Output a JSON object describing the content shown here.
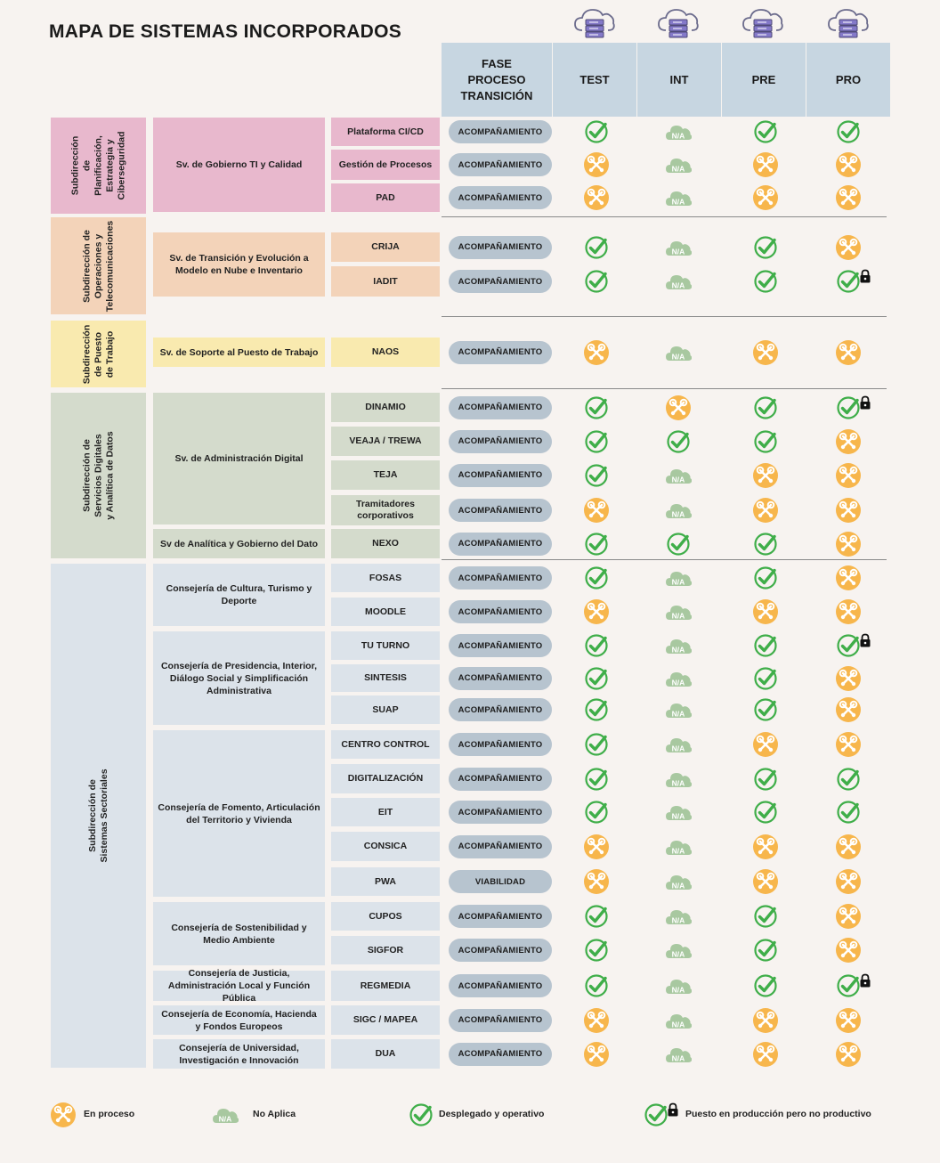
{
  "title": "MAPA DE SISTEMAS INCORPORADOS",
  "headers": {
    "phase": [
      "FASE",
      "PROCESO",
      "TRANSICIÓN"
    ],
    "environments": [
      "TEST",
      "INT",
      "PRE",
      "PRO"
    ]
  },
  "na_label": "N/A",
  "colors": {
    "planning": "#e8b8cd",
    "operations": "#f3d3b9",
    "workplace": "#f9eaaf",
    "digital": "#d4dbcc",
    "sectorial": "#dce3ea",
    "header": "#c7d6e1",
    "pill": "#b7c4cf",
    "check": "#3fae49",
    "progress": "#f7b64c",
    "na": "#a8c8a0"
  },
  "subdirections": [
    {
      "lines": [
        "Subdirección",
        "de",
        "Planificación,",
        "Estrategia y",
        "Ciberseguridad"
      ]
    },
    {
      "lines": [
        "Subdirección de",
        "Operaciones y",
        "Telecomunicaciones"
      ]
    },
    {
      "lines": [
        "Subdirección",
        "de Puesto",
        "de Trabajo"
      ]
    },
    {
      "lines": [
        "Subdirección de",
        "Servicios Digitales",
        "y Analítica de Datos"
      ]
    },
    {
      "lines": [
        "Subdirección de",
        "Sistemas Sectoriales"
      ]
    }
  ],
  "services": [
    {
      "name": "Sv. de Gobierno TI y Calidad"
    },
    {
      "name": "Sv. de Transición y Evolución a Modelo en Nube e Inventario"
    },
    {
      "name": "Sv. de Soporte al Puesto de Trabajo"
    },
    {
      "name": "Sv. de Administración Digital"
    },
    {
      "name": "Sv de Analítica y Gobierno del Dato"
    },
    {
      "name": "Consejería de Cultura, Turismo y Deporte"
    },
    {
      "name": "Consejería de Presidencia, Interior, Diálogo Social y Simplificación Administrativa"
    },
    {
      "name": "Consejería de Fomento, Articulación del Territorio y Vivienda"
    },
    {
      "name": "Consejería de Sostenibilidad y Medio Ambiente"
    },
    {
      "name": "Consejería de Justicia, Administración Local y Función Pública"
    },
    {
      "name": "Consejería de Economía, Hacienda y Fondos Europeos"
    },
    {
      "name": "Consejería de Universidad, Investigación e Innovación"
    }
  ],
  "systems": [
    {
      "name": "Plataforma CI/CD",
      "phase": "ACOMPAÑAMIENTO",
      "status": [
        "ok",
        "na",
        "ok",
        "ok"
      ]
    },
    {
      "name": "Gestión de Procesos",
      "phase": "ACOMPAÑAMIENTO",
      "status": [
        "wip",
        "na",
        "wip",
        "wip"
      ]
    },
    {
      "name": "PAD",
      "phase": "ACOMPAÑAMIENTO",
      "status": [
        "wip",
        "na",
        "wip",
        "wip"
      ]
    },
    {
      "name": "CRIJA",
      "phase": "ACOMPAÑAMIENTO",
      "status": [
        "ok",
        "na",
        "ok",
        "wip"
      ]
    },
    {
      "name": "IADIT",
      "phase": "ACOMPAÑAMIENTO",
      "status": [
        "ok",
        "na",
        "ok",
        "lock"
      ]
    },
    {
      "name": "NAOS",
      "phase": "ACOMPAÑAMIENTO",
      "status": [
        "wip",
        "na",
        "wip",
        "wip"
      ]
    },
    {
      "name": "DINAMIO",
      "phase": "ACOMPAÑAMIENTO",
      "status": [
        "ok",
        "wip",
        "ok",
        "lock"
      ]
    },
    {
      "name": "VEAJA / TREWA",
      "phase": "ACOMPAÑAMIENTO",
      "status": [
        "ok",
        "ok",
        "ok",
        "wip"
      ]
    },
    {
      "name": "TEJA",
      "phase": "ACOMPAÑAMIENTO",
      "status": [
        "ok",
        "na",
        "wip",
        "wip"
      ]
    },
    {
      "name": "Tramitadores corporativos",
      "phase": "ACOMPAÑAMIENTO",
      "status": [
        "wip",
        "na",
        "wip",
        "wip"
      ]
    },
    {
      "name": "NEXO",
      "phase": "ACOMPAÑAMIENTO",
      "status": [
        "ok",
        "ok",
        "ok",
        "wip"
      ]
    },
    {
      "name": "FOSAS",
      "phase": "ACOMPAÑAMIENTO",
      "status": [
        "ok",
        "na",
        "ok",
        "wip"
      ]
    },
    {
      "name": "MOODLE",
      "phase": "ACOMPAÑAMIENTO",
      "status": [
        "wip",
        "na",
        "wip",
        "wip"
      ]
    },
    {
      "name": "TU TURNO",
      "phase": "ACOMPAÑAMIENTO",
      "status": [
        "ok",
        "na",
        "ok",
        "lock"
      ]
    },
    {
      "name": "SINTESIS",
      "phase": "ACOMPAÑAMIENTO",
      "status": [
        "ok",
        "na",
        "ok",
        "wip"
      ]
    },
    {
      "name": "SUAP",
      "phase": "ACOMPAÑAMIENTO",
      "status": [
        "ok",
        "na",
        "ok",
        "wip"
      ]
    },
    {
      "name": "CENTRO CONTROL",
      "phase": "ACOMPAÑAMIENTO",
      "status": [
        "ok",
        "na",
        "wip",
        "wip"
      ]
    },
    {
      "name": "DIGITALIZACIÓN",
      "phase": "ACOMPAÑAMIENTO",
      "status": [
        "ok",
        "na",
        "ok",
        "ok"
      ]
    },
    {
      "name": "EIT",
      "phase": "ACOMPAÑAMIENTO",
      "status": [
        "ok",
        "na",
        "ok",
        "ok"
      ]
    },
    {
      "name": "CONSICA",
      "phase": "ACOMPAÑAMIENTO",
      "status": [
        "wip",
        "na",
        "wip",
        "wip"
      ]
    },
    {
      "name": "PWA",
      "phase": "VIABILIDAD",
      "status": [
        "wip",
        "na",
        "wip",
        "wip"
      ]
    },
    {
      "name": "CUPOS",
      "phase": "ACOMPAÑAMIENTO",
      "status": [
        "ok",
        "na",
        "ok",
        "wip"
      ]
    },
    {
      "name": "SIGFOR",
      "phase": "ACOMPAÑAMIENTO",
      "status": [
        "ok",
        "na",
        "ok",
        "wip"
      ]
    },
    {
      "name": "REGMEDIA",
      "phase": "ACOMPAÑAMIENTO",
      "status": [
        "ok",
        "na",
        "ok",
        "lock"
      ]
    },
    {
      "name": "SIGC / MAPEA",
      "phase": "ACOMPAÑAMIENTO",
      "status": [
        "wip",
        "na",
        "wip",
        "wip"
      ]
    },
    {
      "name": "DUA",
      "phase": "ACOMPAÑAMIENTO",
      "status": [
        "wip",
        "na",
        "wip",
        "wip"
      ]
    }
  ],
  "legend": [
    {
      "icon": "wip",
      "label": "En proceso"
    },
    {
      "icon": "na",
      "label": "No Aplica"
    },
    {
      "icon": "ok",
      "label": "Desplegado y operativo"
    },
    {
      "icon": "lock",
      "label": "Puesto en producción pero no productivo"
    }
  ]
}
